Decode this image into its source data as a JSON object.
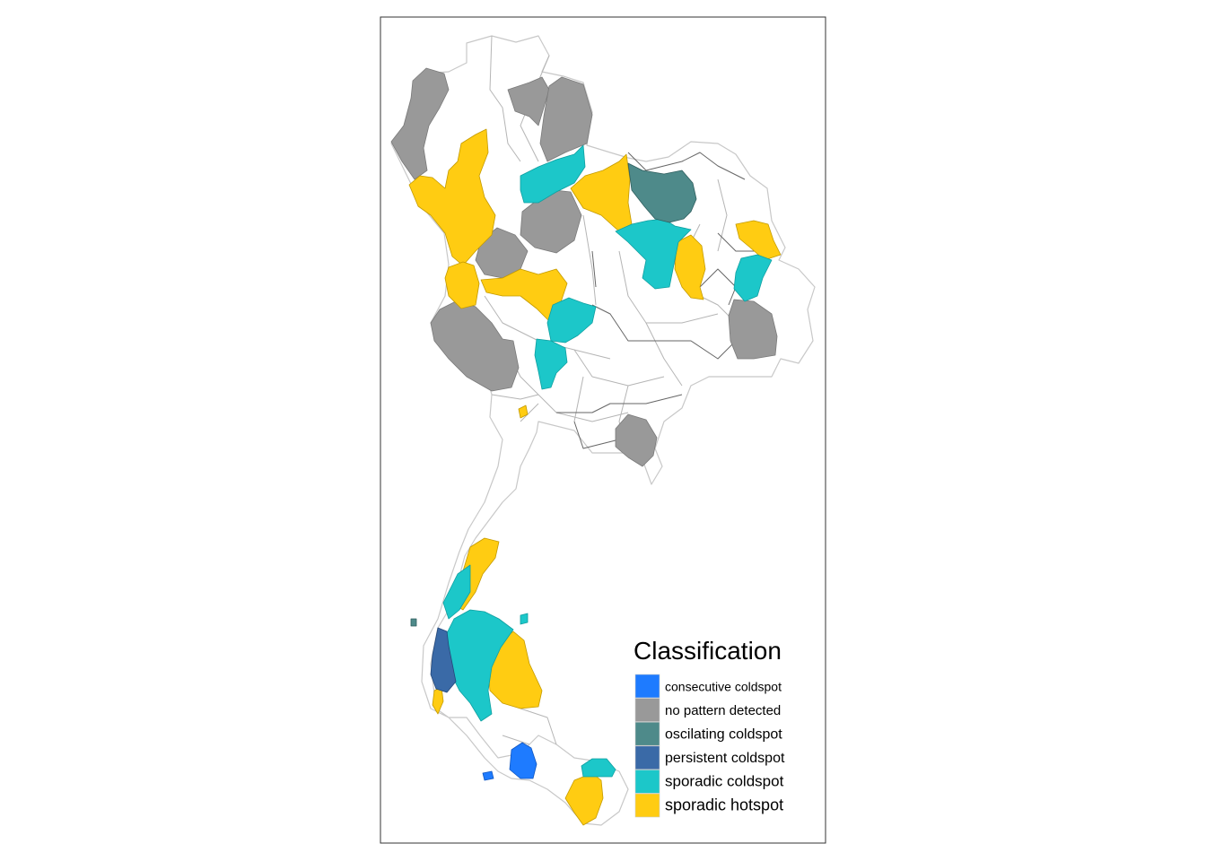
{
  "legend": {
    "title": "Classification",
    "items": [
      {
        "label": "consecutive coldspot",
        "color": "#1E7BFF"
      },
      {
        "label": "no pattern detected",
        "color": "#999999"
      },
      {
        "label": "oscilating coldspot",
        "color": "#4E8A8A"
      },
      {
        "label": "persistent coldspot",
        "color": "#3A6AA7"
      },
      {
        "label": "sporadic coldspot",
        "color": "#1CC7C9"
      },
      {
        "label": "sporadic hotspot",
        "color": "#FFCC12"
      }
    ]
  },
  "map": {
    "region": "Thailand",
    "border_color": "#bfbfbf",
    "background": "#ffffff"
  }
}
